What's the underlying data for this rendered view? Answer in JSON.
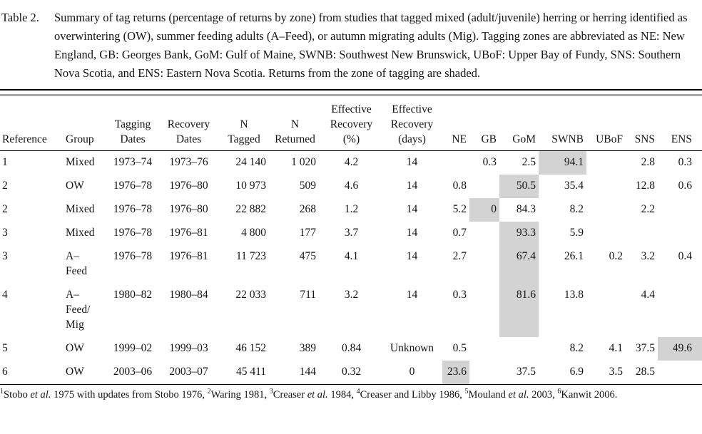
{
  "caption": {
    "label": "Table 2.",
    "text": "Summary of tag returns (percentage of returns by zone) from studies that tagged mixed (adult/juvenile) herring or herring identified as overwintering (OW), summer feeding adults (A–Feed), or autumn migrating adults (Mig). Tagging zones are abbreviated as NE: New England, GB: Georges Bank, GoM: Gulf of Maine, SWNB: Southwest New Brunswick, UBoF: Upper Bay of Fundy, SNS: Southern Nova Scotia, and ENS: Eastern Nova Scotia. Returns from the zone of tagging are shaded."
  },
  "table": {
    "shading_color": "#d3d3d3",
    "columns": [
      {
        "label": "Reference",
        "align": "left"
      },
      {
        "label": "Group",
        "align": "left"
      },
      {
        "label": "Tagging\nDates",
        "align": "center"
      },
      {
        "label": "Recovery\nDates",
        "align": "center"
      },
      {
        "label": "N\nTagged",
        "align": "center",
        "cell_align": "right"
      },
      {
        "label": "N\nReturned",
        "align": "center",
        "cell_align": "right"
      },
      {
        "label": "Effective\nRecovery\n(%)",
        "align": "center"
      },
      {
        "label": "Effective\nRecovery\n(days)",
        "align": "center"
      },
      {
        "label": "NE",
        "align": "right"
      },
      {
        "label": "GB",
        "align": "right"
      },
      {
        "label": "GoM",
        "align": "right"
      },
      {
        "label": "SWNB",
        "align": "right"
      },
      {
        "label": "UBoF",
        "align": "right"
      },
      {
        "label": "SNS",
        "align": "right"
      },
      {
        "label": "ENS",
        "align": "right"
      }
    ],
    "rows": [
      {
        "cells": [
          "1",
          "Mixed",
          "1973–74",
          "1973–76",
          "24 140",
          "1 020",
          "4.2",
          "14",
          "",
          "0.3",
          "2.5",
          "94.1",
          "",
          "2.8",
          "0.3"
        ],
        "shaded_col": 11
      },
      {
        "cells": [
          "2",
          "OW",
          "1976–78",
          "1976–80",
          "10 973",
          "509",
          "4.6",
          "14",
          "0.8",
          "",
          "50.5",
          "35.4",
          "",
          "12.8",
          "0.6"
        ],
        "shaded_col": 10
      },
      {
        "cells": [
          "2",
          "Mixed",
          "1976–78",
          "1976–80",
          "22 882",
          "268",
          "1.2",
          "14",
          "5.2",
          "0",
          "84.3",
          "8.2",
          "",
          "2.2",
          ""
        ],
        "shaded_col": 9
      },
      {
        "cells": [
          "3",
          "Mixed",
          "1976–78",
          "1976–81",
          "4 800",
          "177",
          "3.7",
          "14",
          "0.7",
          "",
          "93.3",
          "5.9",
          "",
          "",
          ""
        ],
        "shaded_col": 10
      },
      {
        "cells": [
          "3",
          "A–\nFeed",
          "1976–78",
          "1976–81",
          "11 723",
          "475",
          "4.1",
          "14",
          "2.7",
          "",
          "67.4",
          "26.1",
          "0.2",
          "3.2",
          "0.4"
        ],
        "shaded_col": 10
      },
      {
        "cells": [
          "4",
          "A–\nFeed/\nMig",
          "1980–82",
          "1980–84",
          "22 033",
          "711",
          "3.2",
          "14",
          "0.3",
          "",
          "81.6",
          "13.8",
          "",
          "4.4",
          ""
        ],
        "shaded_col": 10
      },
      {
        "cells": [
          "5",
          "OW",
          "1999–02",
          "1999–03",
          "46 152",
          "389",
          "0.84",
          "Unknown",
          "0.5",
          "",
          "",
          "8.2",
          "4.1",
          "37.5",
          "49.6"
        ],
        "shaded_col": 14
      },
      {
        "cells": [
          "6",
          "OW",
          "2003–06",
          "2003–07",
          "45 411",
          "144",
          "0.32",
          "0",
          "23.6",
          "",
          "37.5",
          "6.9",
          "3.5",
          "28.5",
          ""
        ],
        "shaded_col": 8
      }
    ]
  },
  "footnotes": {
    "segments": [
      {
        "sup": "1"
      },
      {
        "text": "Stobo "
      },
      {
        "i": "et al."
      },
      {
        "text": " 1975 with updates from Stobo 1976, "
      },
      {
        "sup": "2"
      },
      {
        "text": "Waring 1981, "
      },
      {
        "sup": "3"
      },
      {
        "text": "Creaser "
      },
      {
        "i": "et al."
      },
      {
        "text": " 1984, "
      },
      {
        "sup": "4"
      },
      {
        "text": "Creaser and Libby 1986, "
      },
      {
        "sup": "5"
      },
      {
        "text": "Mouland "
      },
      {
        "i": "et al."
      },
      {
        "text": " 2003, "
      },
      {
        "sup": "6"
      },
      {
        "text": "Kanwit 2006."
      }
    ]
  }
}
